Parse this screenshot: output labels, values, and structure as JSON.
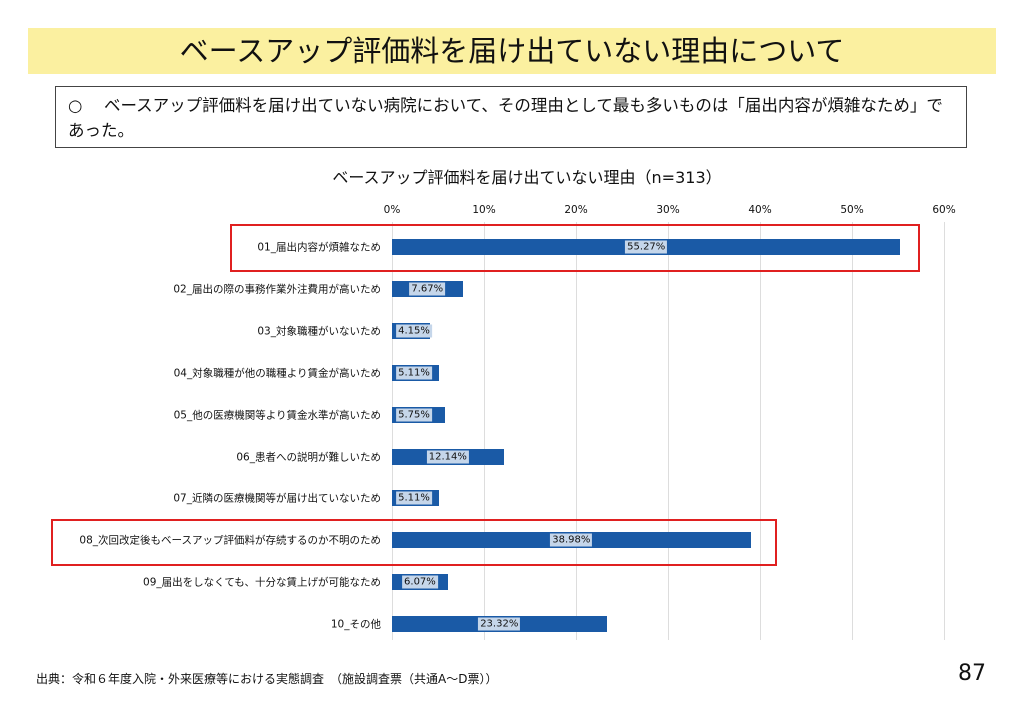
{
  "title": "ベースアップ評価料を届け出ていない理由について",
  "summary": {
    "bullet": "○",
    "text": "ベースアップ評価料を届け出ていない病院において、その理由として最も多いものは「届出内容が煩雑なため」であった。"
  },
  "chart_data": {
    "type": "bar",
    "orientation": "horizontal",
    "title": "ベースアップ評価料を届け出ていない理由（n=313）",
    "categories": [
      "01_届出内容が煩雑なため",
      "02_届出の際の事務作業外注費用が高いため",
      "03_対象職種がいないため",
      "04_対象職種が他の職種より賃金が高いため",
      "05_他の医療機関等より賃金水準が高いため",
      "06_患者への説明が難しいため",
      "07_近隣の医療機関等が届け出ていないため",
      "08_次回改定後もベースアップ評価料が存続するのか不明のため",
      "09_届出をしなくても、十分な賃上げが可能なため",
      "10_その他"
    ],
    "values": [
      55.27,
      7.67,
      4.15,
      5.11,
      5.75,
      12.14,
      5.11,
      38.98,
      6.07,
      23.32
    ],
    "data_labels": [
      "55.27%",
      "7.67%",
      "4.15%",
      "5.11%",
      "5.75%",
      "12.14%",
      "5.11%",
      "38.98%",
      "6.07%",
      "23.32%"
    ],
    "xticks": [
      "0%",
      "10%",
      "20%",
      "30%",
      "40%",
      "50%",
      "60%"
    ],
    "xlim": [
      0,
      60
    ],
    "highlighted": [
      0,
      7
    ],
    "bar_color": "#1a5aa6",
    "highlight_color": "#e02020"
  },
  "footer": {
    "source": "出典：令和６年度入院・外来医療等における実態調査　（施設調査票（共通A～D票））",
    "page": "87"
  }
}
